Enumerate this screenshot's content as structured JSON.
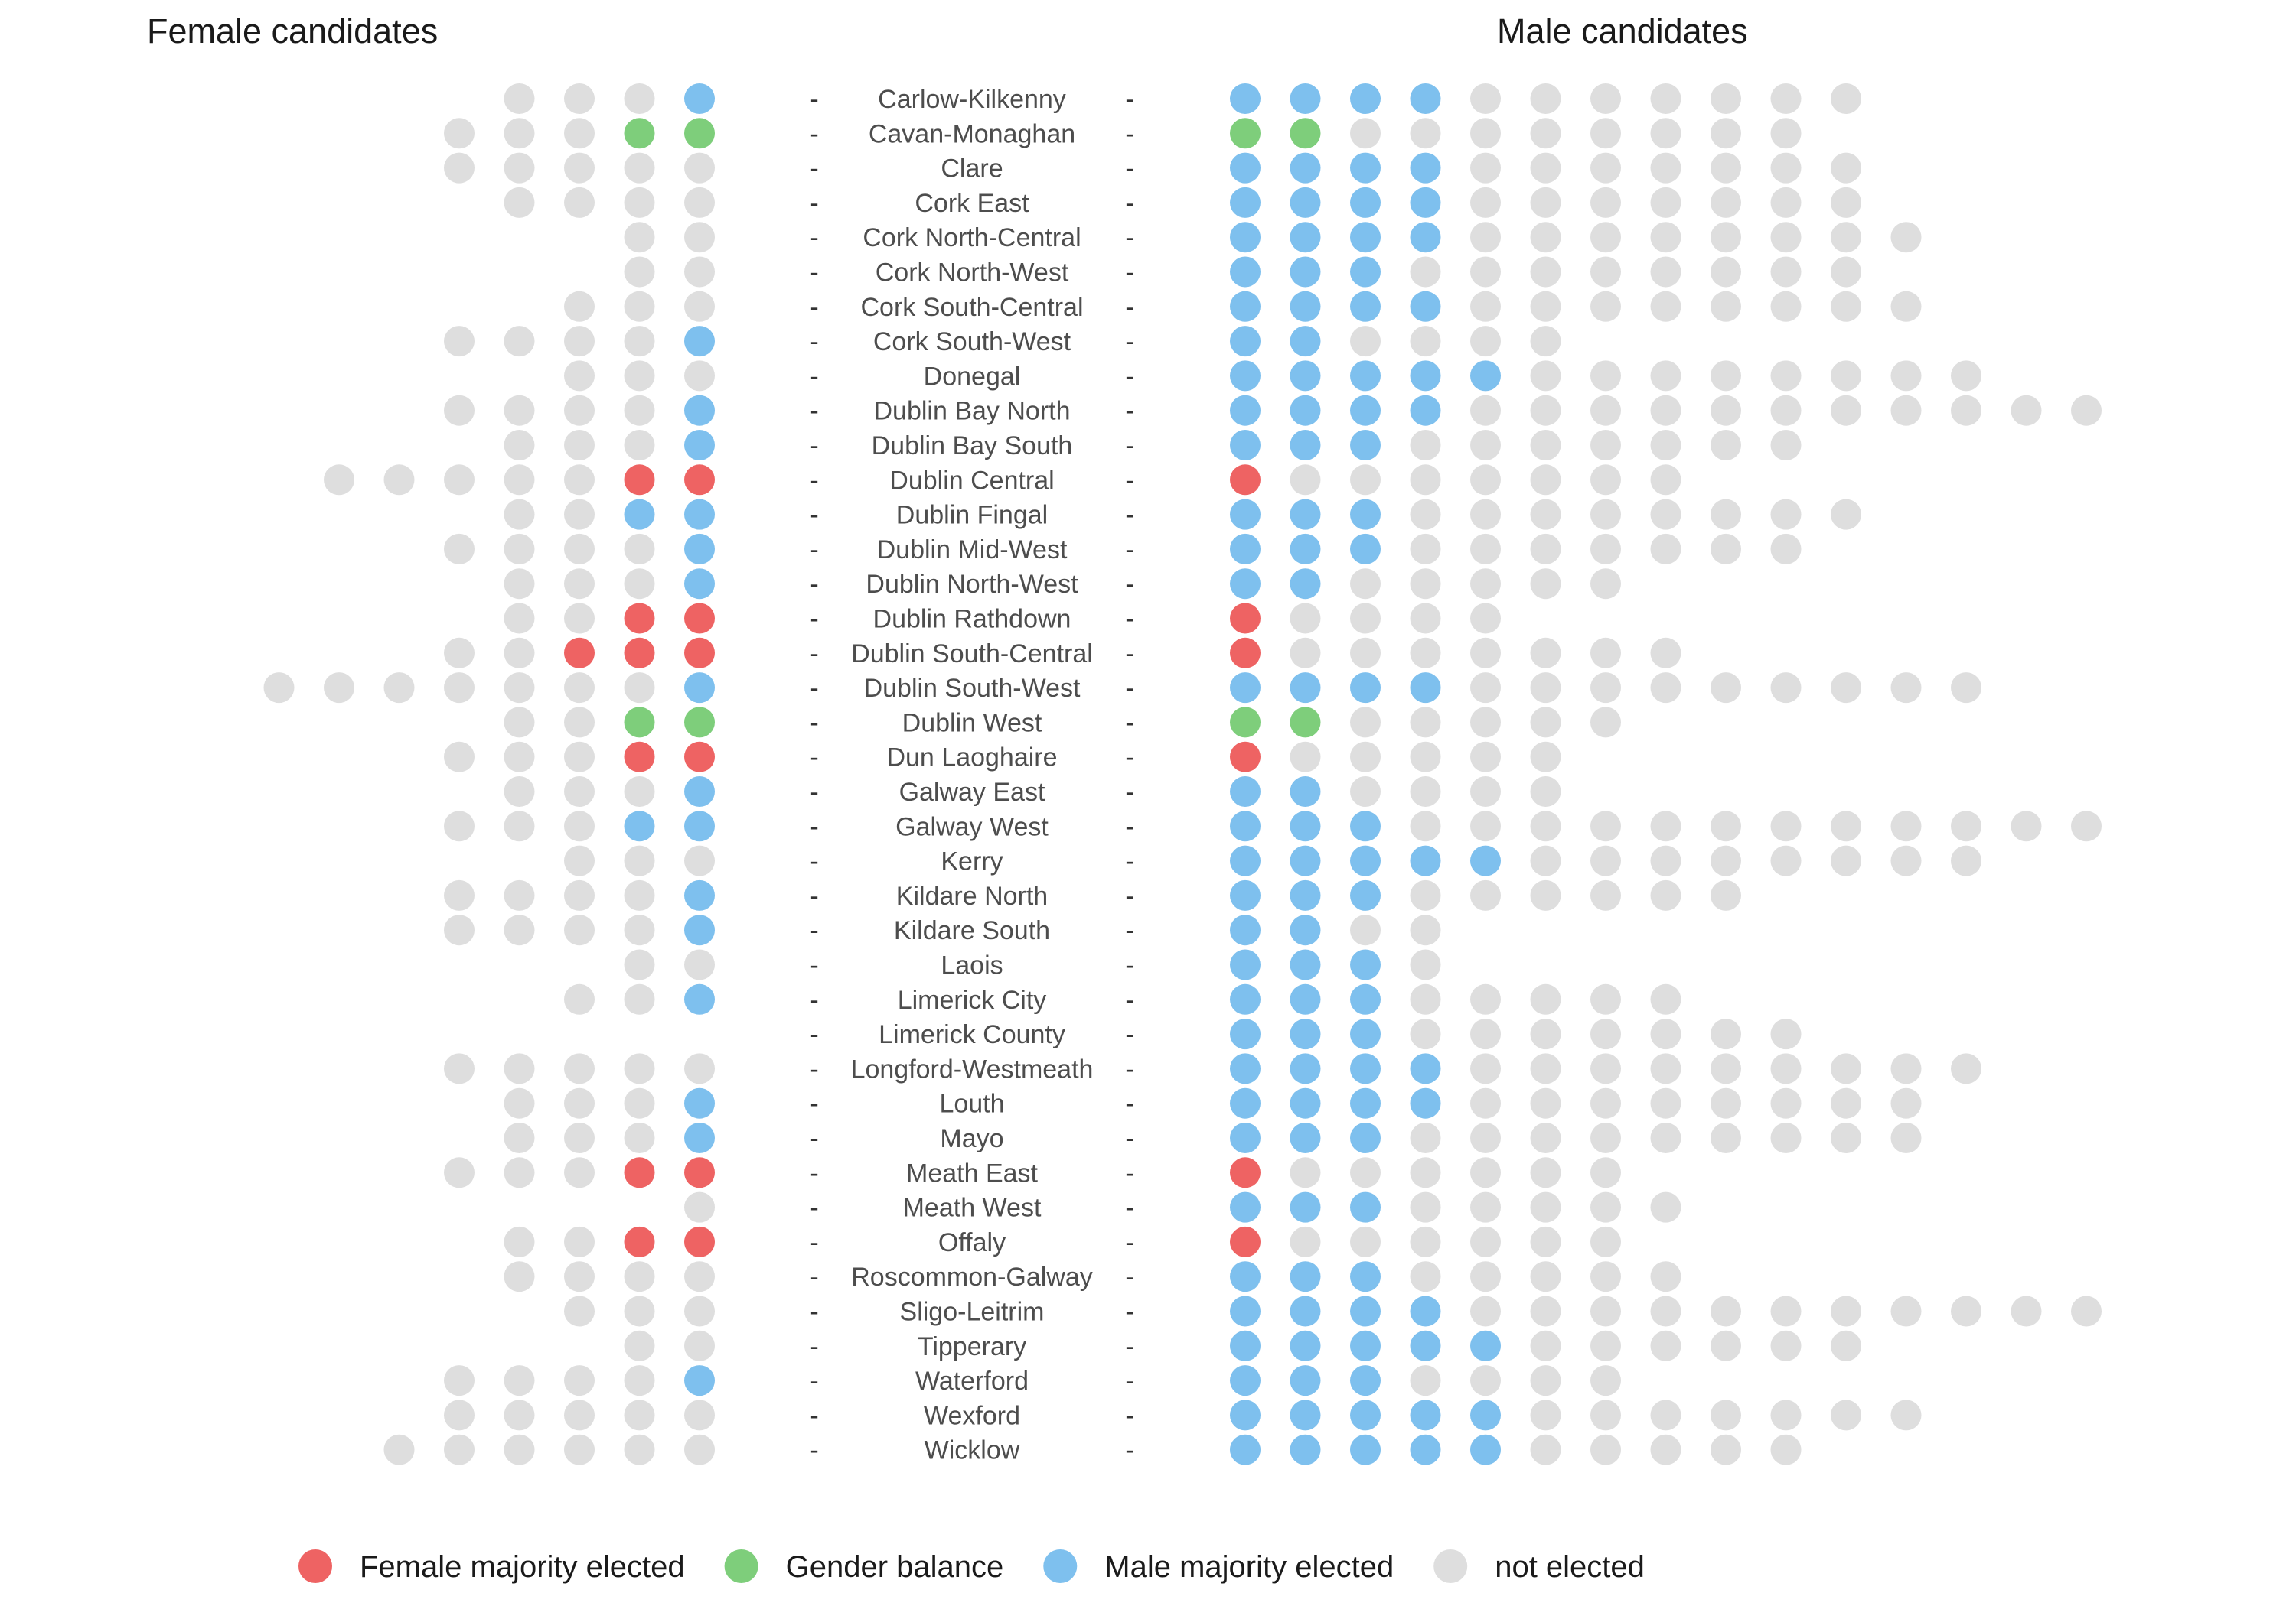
{
  "chart_data": {
    "type": "dot-matrix",
    "left_title": "Female candidates",
    "right_title": "Male candidates",
    "tick_label": "-",
    "colors": {
      "female_majority": "#EE6363",
      "balance": "#7ECE7B",
      "male_majority": "#7EC0EE",
      "not_elected": "#DEDEDE"
    },
    "legend": [
      {
        "key": "female_majority",
        "label": "Female majority elected"
      },
      {
        "key": "balance",
        "label": "Gender balance"
      },
      {
        "key": "male_majority",
        "label": "Male majority elected"
      },
      {
        "key": "not_elected",
        "label": "not elected"
      }
    ],
    "constituencies": [
      {
        "name": "Carlow-Kilkenny",
        "female_candidates": 4,
        "female_elected": 1,
        "male_candidates": 11,
        "male_elected": 4,
        "outcome": "male_majority"
      },
      {
        "name": "Cavan-Monaghan",
        "female_candidates": 5,
        "female_elected": 2,
        "male_candidates": 10,
        "male_elected": 2,
        "outcome": "balance"
      },
      {
        "name": "Clare",
        "female_candidates": 5,
        "female_elected": 0,
        "male_candidates": 11,
        "male_elected": 4,
        "outcome": "male_majority"
      },
      {
        "name": "Cork East",
        "female_candidates": 4,
        "female_elected": 0,
        "male_candidates": 11,
        "male_elected": 4,
        "outcome": "male_majority"
      },
      {
        "name": "Cork North-Central",
        "female_candidates": 2,
        "female_elected": 0,
        "male_candidates": 12,
        "male_elected": 4,
        "outcome": "male_majority"
      },
      {
        "name": "Cork North-West",
        "female_candidates": 2,
        "female_elected": 0,
        "male_candidates": 11,
        "male_elected": 3,
        "outcome": "male_majority"
      },
      {
        "name": "Cork South-Central",
        "female_candidates": 3,
        "female_elected": 0,
        "male_candidates": 12,
        "male_elected": 4,
        "outcome": "male_majority"
      },
      {
        "name": "Cork South-West",
        "female_candidates": 5,
        "female_elected": 1,
        "male_candidates": 6,
        "male_elected": 2,
        "outcome": "male_majority"
      },
      {
        "name": "Donegal",
        "female_candidates": 3,
        "female_elected": 0,
        "male_candidates": 13,
        "male_elected": 5,
        "outcome": "male_majority"
      },
      {
        "name": "Dublin Bay North",
        "female_candidates": 5,
        "female_elected": 1,
        "male_candidates": 15,
        "male_elected": 4,
        "outcome": "male_majority"
      },
      {
        "name": "Dublin Bay South",
        "female_candidates": 4,
        "female_elected": 1,
        "male_candidates": 10,
        "male_elected": 3,
        "outcome": "male_majority"
      },
      {
        "name": "Dublin Central",
        "female_candidates": 7,
        "female_elected": 2,
        "male_candidates": 8,
        "male_elected": 1,
        "outcome": "female_majority"
      },
      {
        "name": "Dublin Fingal",
        "female_candidates": 4,
        "female_elected": 2,
        "male_candidates": 11,
        "male_elected": 3,
        "outcome": "male_majority"
      },
      {
        "name": "Dublin Mid-West",
        "female_candidates": 5,
        "female_elected": 1,
        "male_candidates": 10,
        "male_elected": 3,
        "outcome": "male_majority"
      },
      {
        "name": "Dublin North-West",
        "female_candidates": 4,
        "female_elected": 1,
        "male_candidates": 7,
        "male_elected": 2,
        "outcome": "male_majority"
      },
      {
        "name": "Dublin Rathdown",
        "female_candidates": 4,
        "female_elected": 2,
        "male_candidates": 5,
        "male_elected": 1,
        "outcome": "female_majority"
      },
      {
        "name": "Dublin South-Central",
        "female_candidates": 5,
        "female_elected": 3,
        "male_candidates": 8,
        "male_elected": 1,
        "outcome": "female_majority"
      },
      {
        "name": "Dublin South-West",
        "female_candidates": 8,
        "female_elected": 1,
        "male_candidates": 13,
        "male_elected": 4,
        "outcome": "male_majority"
      },
      {
        "name": "Dublin West",
        "female_candidates": 4,
        "female_elected": 2,
        "male_candidates": 7,
        "male_elected": 2,
        "outcome": "balance"
      },
      {
        "name": "Dun Laoghaire",
        "female_candidates": 5,
        "female_elected": 2,
        "male_candidates": 6,
        "male_elected": 1,
        "outcome": "female_majority"
      },
      {
        "name": "Galway East",
        "female_candidates": 4,
        "female_elected": 1,
        "male_candidates": 6,
        "male_elected": 2,
        "outcome": "male_majority"
      },
      {
        "name": "Galway West",
        "female_candidates": 5,
        "female_elected": 2,
        "male_candidates": 15,
        "male_elected": 3,
        "outcome": "male_majority"
      },
      {
        "name": "Kerry",
        "female_candidates": 3,
        "female_elected": 0,
        "male_candidates": 13,
        "male_elected": 5,
        "outcome": "male_majority"
      },
      {
        "name": "Kildare North",
        "female_candidates": 5,
        "female_elected": 1,
        "male_candidates": 9,
        "male_elected": 3,
        "outcome": "male_majority"
      },
      {
        "name": "Kildare South",
        "female_candidates": 5,
        "female_elected": 1,
        "male_candidates": 4,
        "male_elected": 2,
        "outcome": "male_majority"
      },
      {
        "name": "Laois",
        "female_candidates": 2,
        "female_elected": 0,
        "male_candidates": 4,
        "male_elected": 3,
        "outcome": "male_majority"
      },
      {
        "name": "Limerick City",
        "female_candidates": 3,
        "female_elected": 1,
        "male_candidates": 8,
        "male_elected": 3,
        "outcome": "male_majority"
      },
      {
        "name": "Limerick County",
        "female_candidates": 0,
        "female_elected": 0,
        "male_candidates": 10,
        "male_elected": 3,
        "outcome": "male_majority"
      },
      {
        "name": "Longford-Westmeath",
        "female_candidates": 5,
        "female_elected": 0,
        "male_candidates": 13,
        "male_elected": 4,
        "outcome": "male_majority"
      },
      {
        "name": "Louth",
        "female_candidates": 4,
        "female_elected": 1,
        "male_candidates": 12,
        "male_elected": 4,
        "outcome": "male_majority"
      },
      {
        "name": "Mayo",
        "female_candidates": 4,
        "female_elected": 1,
        "male_candidates": 12,
        "male_elected": 3,
        "outcome": "male_majority"
      },
      {
        "name": "Meath East",
        "female_candidates": 5,
        "female_elected": 2,
        "male_candidates": 7,
        "male_elected": 1,
        "outcome": "female_majority"
      },
      {
        "name": "Meath West",
        "female_candidates": 1,
        "female_elected": 0,
        "male_candidates": 8,
        "male_elected": 3,
        "outcome": "male_majority"
      },
      {
        "name": "Offaly",
        "female_candidates": 4,
        "female_elected": 2,
        "male_candidates": 7,
        "male_elected": 1,
        "outcome": "female_majority"
      },
      {
        "name": "Roscommon-Galway",
        "female_candidates": 4,
        "female_elected": 0,
        "male_candidates": 8,
        "male_elected": 3,
        "outcome": "male_majority"
      },
      {
        "name": "Sligo-Leitrim",
        "female_candidates": 3,
        "female_elected": 0,
        "male_candidates": 15,
        "male_elected": 4,
        "outcome": "male_majority"
      },
      {
        "name": "Tipperary",
        "female_candidates": 2,
        "female_elected": 0,
        "male_candidates": 11,
        "male_elected": 5,
        "outcome": "male_majority"
      },
      {
        "name": "Waterford",
        "female_candidates": 5,
        "female_elected": 1,
        "male_candidates": 7,
        "male_elected": 3,
        "outcome": "male_majority"
      },
      {
        "name": "Wexford",
        "female_candidates": 5,
        "female_elected": 0,
        "male_candidates": 12,
        "male_elected": 5,
        "outcome": "male_majority"
      },
      {
        "name": "Wicklow",
        "female_candidates": 6,
        "female_elected": 0,
        "male_candidates": 10,
        "male_elected": 5,
        "outcome": "male_majority"
      }
    ]
  }
}
